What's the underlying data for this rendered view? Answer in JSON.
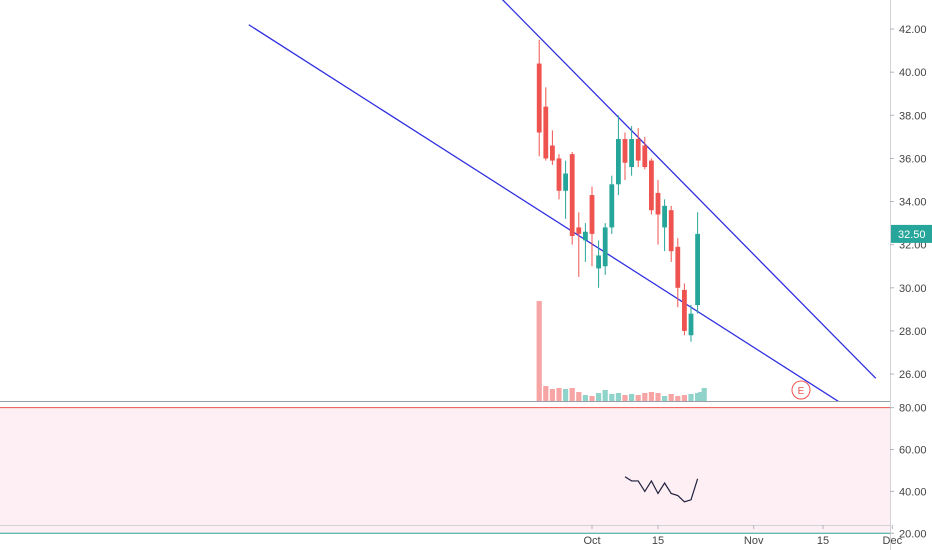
{
  "chart_data": [
    {
      "type": "candlestick",
      "panel": "price",
      "title": "",
      "xlabel": "",
      "ylabel": "",
      "ylim": [
        25.0,
        43.0
      ],
      "x_tick_labels": [
        "Oct",
        "15",
        "Nov",
        "15",
        "Dec"
      ],
      "y_tick_labels": [
        "42.00",
        "40.00",
        "38.00",
        "36.00",
        "34.00",
        "32.00",
        "30.00",
        "28.00",
        "26.00"
      ],
      "last_price_label": "32.50",
      "earnings_marker": "E",
      "colors": {
        "up": "#26a69a",
        "down": "#ef5350",
        "trendline": "#2f2fe0",
        "last_price_bg": "#26a69a"
      },
      "day_index_of_oct1": 0,
      "candles": [
        {
          "day": -8,
          "open": 40.4,
          "high": 41.5,
          "low": 36.1,
          "close": 37.2
        },
        {
          "day": -7,
          "open": 38.4,
          "high": 39.3,
          "low": 35.9,
          "close": 36.0
        },
        {
          "day": -6,
          "open": 36.6,
          "high": 37.3,
          "low": 35.7,
          "close": 35.9
        },
        {
          "day": -5,
          "open": 36.0,
          "high": 36.2,
          "low": 34.1,
          "close": 34.5
        },
        {
          "day": -4,
          "open": 34.5,
          "high": 35.9,
          "low": 33.2,
          "close": 35.3
        },
        {
          "day": -3,
          "open": 36.2,
          "high": 36.3,
          "low": 32.0,
          "close": 32.4
        },
        {
          "day": -2,
          "open": 32.8,
          "high": 33.5,
          "low": 30.5,
          "close": 32.5
        },
        {
          "day": -1,
          "open": 32.2,
          "high": 33.0,
          "low": 31.2,
          "close": 32.6
        },
        {
          "day": 0,
          "open": 34.3,
          "high": 34.7,
          "low": 31.0,
          "close": 32.5
        },
        {
          "day": 1,
          "open": 30.9,
          "high": 32.2,
          "low": 30.0,
          "close": 31.5
        },
        {
          "day": 2,
          "open": 31.0,
          "high": 33.0,
          "low": 30.6,
          "close": 32.8
        },
        {
          "day": 3,
          "open": 32.8,
          "high": 35.2,
          "low": 32.5,
          "close": 34.8
        },
        {
          "day": 4,
          "open": 34.8,
          "high": 38.0,
          "low": 34.3,
          "close": 36.9
        },
        {
          "day": 5,
          "open": 36.9,
          "high": 37.2,
          "low": 35.0,
          "close": 35.8
        },
        {
          "day": 6,
          "open": 35.6,
          "high": 37.5,
          "low": 35.2,
          "close": 36.9
        },
        {
          "day": 7,
          "open": 36.9,
          "high": 37.4,
          "low": 35.6,
          "close": 35.9
        },
        {
          "day": 8,
          "open": 36.6,
          "high": 37.0,
          "low": 35.5,
          "close": 35.6
        },
        {
          "day": 9,
          "open": 35.9,
          "high": 36.0,
          "low": 33.4,
          "close": 33.6
        },
        {
          "day": 10,
          "open": 34.4,
          "high": 35.0,
          "low": 32.0,
          "close": 33.4
        },
        {
          "day": 11,
          "open": 32.8,
          "high": 34.1,
          "low": 31.7,
          "close": 33.8
        },
        {
          "day": 12,
          "open": 33.6,
          "high": 33.8,
          "low": 31.2,
          "close": 31.7
        },
        {
          "day": 13,
          "open": 31.9,
          "high": 32.3,
          "low": 29.1,
          "close": 30.0
        },
        {
          "day": 14,
          "open": 29.9,
          "high": 30.2,
          "low": 27.8,
          "close": 28.0
        },
        {
          "day": 15,
          "open": 27.8,
          "high": 29.2,
          "low": 27.5,
          "close": 28.8
        },
        {
          "day": 16,
          "open": 29.2,
          "high": 33.5,
          "low": 28.8,
          "close": 32.5
        }
      ],
      "volume": [
        10.0,
        1.5,
        1.2,
        1.3,
        1.2,
        1.3,
        0.9,
        0.6,
        0.5,
        0.8,
        1.1,
        0.7,
        0.8,
        0.6,
        0.7,
        0.6,
        0.8,
        0.9,
        0.8,
        0.5,
        0.7,
        0.5,
        0.6,
        0.7,
        0.8,
        0.9,
        1.3
      ],
      "volume_days": [
        -8,
        -7,
        -6,
        -5,
        -4,
        -3,
        -2,
        -1,
        0,
        1,
        2,
        3,
        4,
        5,
        6,
        7,
        8,
        9,
        10,
        11,
        12,
        13,
        14,
        15,
        16,
        16.5,
        17
      ],
      "trendlines": [
        {
          "name": "",
          "points": [
            {
              "day": -52,
              "value": 42.2
            },
            {
              "day": 38,
              "value": 24.6
            }
          ]
        },
        {
          "name": "",
          "points": [
            {
              "day": -14,
              "value": 43.5
            },
            {
              "day": 43,
              "value": 25.8
            }
          ]
        }
      ]
    },
    {
      "type": "line",
      "panel": "oscillator",
      "ylim": [
        12.0,
        87.0
      ],
      "y_tick_labels": [
        "80.00",
        "60.00",
        "40.00",
        "20.00"
      ],
      "upper_band": 80,
      "lower_band": 20,
      "colors": {
        "line": "#1f1f3d",
        "upper_band": "#ef5350",
        "lower_band": "#26a69a",
        "band_fill": "#fdeff3"
      },
      "points": [
        {
          "day": 5,
          "value": 47
        },
        {
          "day": 6,
          "value": 45
        },
        {
          "day": 7,
          "value": 45
        },
        {
          "day": 8,
          "value": 40
        },
        {
          "day": 9,
          "value": 45
        },
        {
          "day": 10,
          "value": 39
        },
        {
          "day": 11,
          "value": 44
        },
        {
          "day": 12,
          "value": 39
        },
        {
          "day": 13,
          "value": 38
        },
        {
          "day": 14,
          "value": 35
        },
        {
          "day": 15,
          "value": 36
        },
        {
          "day": 16,
          "value": 46
        }
      ]
    }
  ]
}
